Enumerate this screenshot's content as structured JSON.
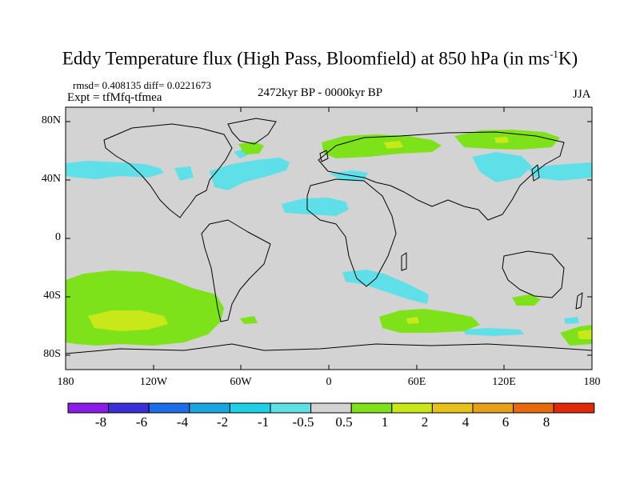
{
  "title": {
    "main": "Eddy Temperature flux (High Pass, Bloomfield) at 850 hPa (in ms",
    "superscript": "-1",
    "tail": "K)"
  },
  "stats_line": "rmsd= 0.408135 diff= 0.0221673",
  "experiment": "Expt = tfMfq-tfmea",
  "period": "2472kyr BP - 0000kyr BP",
  "season": "JJA",
  "lat_labels": [
    "80N",
    "40N",
    "0",
    "40S",
    "80S"
  ],
  "lon_labels": [
    "180",
    "120W",
    "60W",
    "0",
    "60E",
    "120E",
    "180"
  ],
  "colorbar": {
    "labels": [
      "-8",
      "-6",
      "-4",
      "-2",
      "-1",
      "-0.5",
      "0.5",
      "1",
      "2",
      "4",
      "6",
      "8"
    ],
    "colors": [
      "#8b1be6",
      "#3d2fd8",
      "#1d6ce8",
      "#16a6e0",
      "#1ecfe8",
      "#5fe0e8",
      "#d3d3d3",
      "#7ee21a",
      "#c9e81a",
      "#e8c21a",
      "#e8a01a",
      "#e86a10",
      "#e02a08"
    ]
  },
  "colors": {
    "ocean": "#d3d3d3",
    "coastline": "#000000"
  }
}
